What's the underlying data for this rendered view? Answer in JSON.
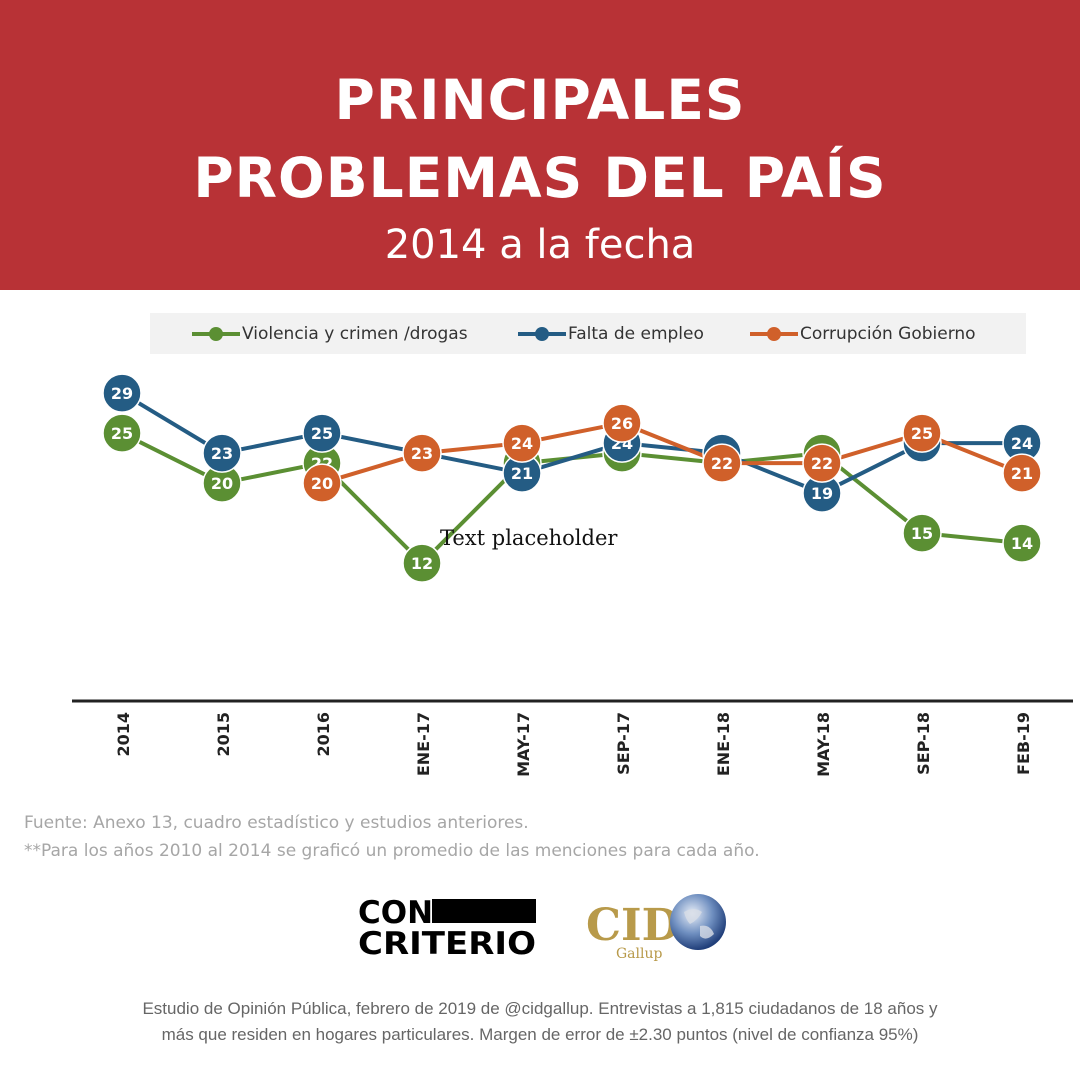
{
  "header": {
    "title_line1": "PRINCIPALES",
    "title_line2": "PROBLEMAS DEL PAÍS",
    "subtitle": "2014 a la fecha",
    "background_color": "#b83236"
  },
  "placeholder_text": "Text placeholder",
  "chart_data": {
    "type": "line",
    "categories": [
      "2014",
      "2015",
      "2016",
      "ENE-17",
      "MAY-17",
      "SEP-17",
      "ENE-18",
      "MAY-18",
      "SEP-18",
      "FEB-19"
    ],
    "series": [
      {
        "name": "Violencia y crimen /drogas",
        "color": "#5b8f33",
        "values": [
          25,
          20,
          22,
          12,
          22,
          23,
          22,
          23,
          15,
          14
        ]
      },
      {
        "name": "Falta de empleo",
        "color": "#245c84",
        "values": [
          29,
          23,
          25,
          23,
          21,
          24,
          23,
          19,
          24,
          24
        ]
      },
      {
        "name": "Corrupción Gobierno",
        "color": "#d0602a",
        "values": [
          null,
          null,
          20,
          23,
          24,
          26,
          22,
          22,
          25,
          21
        ]
      }
    ],
    "legend_position": "top",
    "grid": false,
    "data_labels": true
  },
  "notes": {
    "source": "Fuente: Anexo 13, cuadro estadístico y estudios anteriores.",
    "average_note": "**Para los años 2010 al 2014 se graficó un promedio de las menciones para cada año."
  },
  "logos": {
    "concriterio_line1": "CON",
    "concriterio_line2": "CRITERIO",
    "cid_main": "CID",
    "cid_sub": "Gallup"
  },
  "footer": {
    "line1": "Estudio de Opinión Pública, febrero de 2019 de @cidgallup.  Entrevistas a 1,815 ciudadanos de 18 años y",
    "line2": "más que residen en hogares particulares. Margen de error de ±2.30 puntos (nivel de confianza 95%)"
  }
}
